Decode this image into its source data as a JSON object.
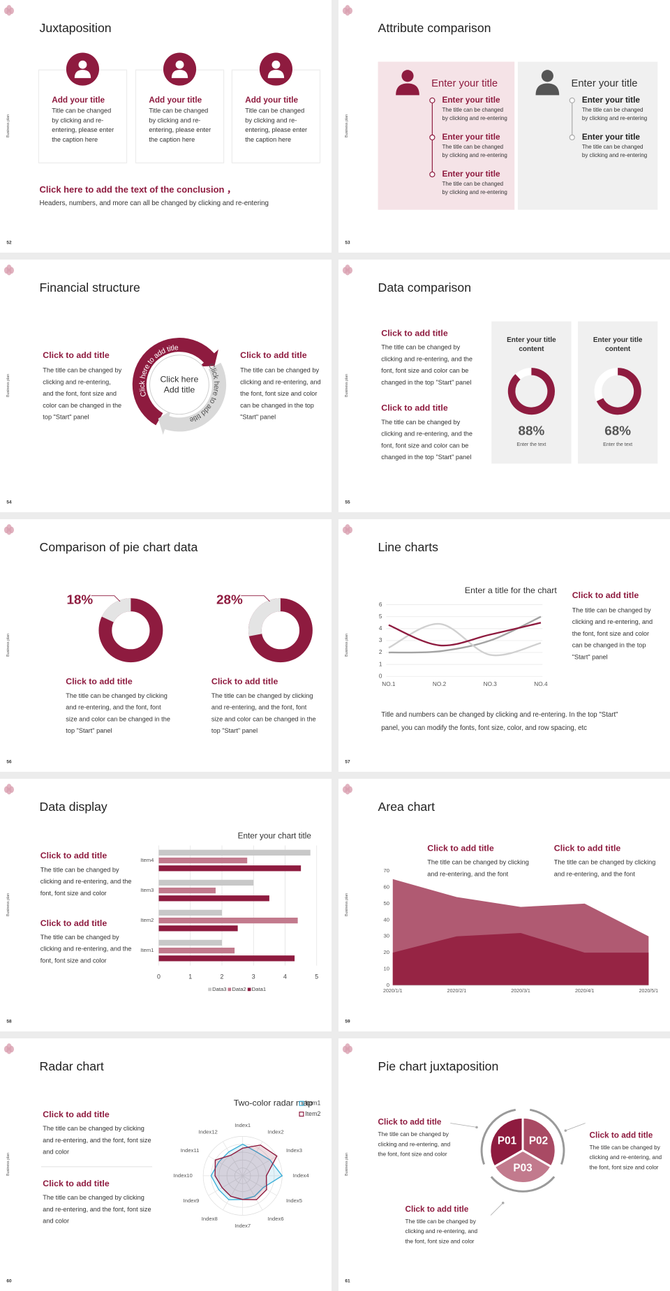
{
  "side_label": "Business plan",
  "slides": [
    {
      "number": 52,
      "title": "Juxtaposition",
      "cards": [
        {
          "heading": "Add your title",
          "lines": [
            "Title can be changed",
            "by clicking and re-",
            "entering, please enter",
            "the caption here"
          ]
        },
        {
          "heading": "Add your title",
          "lines": [
            "Title can be changed",
            "by clicking and re-",
            "entering, please enter",
            "the caption here"
          ]
        },
        {
          "heading": "Add your title",
          "lines": [
            "Title can be changed",
            "by clicking and re-",
            "entering, please enter",
            "the caption here"
          ]
        }
      ],
      "conclusion": {
        "heading": "Click here to add the text of the conclusion ，",
        "text": "Headers, numbers, and more can all be changed by clicking and re-entering"
      }
    },
    {
      "number": 53,
      "title": "Attribute comparison",
      "panels": [
        {
          "heading": "Enter your title",
          "items": [
            {
              "heading": "Enter your title",
              "lines": [
                "The title can be changed",
                "by clicking and re-entering"
              ]
            },
            {
              "heading": "Enter your title",
              "lines": [
                "The title can be changed",
                "by clicking and re-entering"
              ]
            },
            {
              "heading": "Enter your title",
              "lines": [
                "The title can be changed",
                "by clicking and re-entering"
              ]
            }
          ]
        },
        {
          "heading": "Enter your title",
          "items": [
            {
              "heading": "Enter your title",
              "lines": [
                "The title can be changed",
                "by clicking and re-entering"
              ]
            },
            {
              "heading": "Enter your title",
              "lines": [
                "The title can be changed",
                "by clicking and re-entering"
              ]
            }
          ]
        }
      ]
    },
    {
      "number": 54,
      "title": "Financial structure",
      "blocks": [
        {
          "heading": "Click to add title",
          "lines": [
            "The title can be changed by",
            "clicking and re-entering,",
            "and the font, font size and",
            "color can be changed in the",
            "top \"Start\" panel"
          ]
        },
        {
          "heading": "Click to add title",
          "lines": [
            "The title can be changed by",
            "clicking and re-entering, and",
            "the font, font size and color",
            "can be changed in the top",
            "\"Start\" panel"
          ]
        }
      ],
      "center": [
        "Click here",
        "Add title"
      ],
      "arc_labels": [
        "Click here to add title",
        "Click here to add title"
      ]
    },
    {
      "number": 55,
      "title": "Data comparison",
      "blocks": [
        {
          "heading": "Click to add title",
          "lines": [
            "The title can be changed by",
            "clicking and re-entering, and the",
            "font, font size and color can be",
            "changed in the top \"Start\" panel"
          ]
        },
        {
          "heading": "Click to add title",
          "lines": [
            "The title can be changed by",
            "clicking and re-entering, and the",
            "font, font size and color can be",
            "changed in the top \"Start\" panel"
          ]
        }
      ],
      "charts": [
        {
          "type": "donut",
          "title": [
            "Enter your title",
            "content"
          ],
          "values": [
            88
          ],
          "value_labels": [
            "88%"
          ],
          "caption": "Enter the text",
          "color": "#8e1b3f",
          "track_color": "#ffffff",
          "clockwise": true
        },
        {
          "type": "donut",
          "title": [
            "Enter your title",
            "content"
          ],
          "values": [
            68
          ],
          "value_labels": [
            "68%"
          ],
          "caption": "Enter the text",
          "color": "#8e1b3f",
          "track_color": "#ffffff",
          "clockwise": true
        }
      ]
    },
    {
      "number": 56,
      "title": "Comparison of pie chart data",
      "charts": [
        {
          "type": "donut",
          "values": [
            18
          ],
          "value_labels": [
            "18%"
          ],
          "color": "#e4e4e4",
          "track_color": "#8e1b3f",
          "clockwise": false
        },
        {
          "type": "donut",
          "values": [
            28
          ],
          "value_labels": [
            "28%"
          ],
          "color": "#e4e4e4",
          "track_color": "#8e1b3f",
          "clockwise": false
        }
      ],
      "blocks": [
        {
          "heading": "Click to add title",
          "lines": [
            "The title can be changed by clicking",
            "and re-entering, and the font, font",
            "size and color can be changed in the",
            "top \"Start\" panel"
          ]
        },
        {
          "heading": "Click to add title",
          "lines": [
            "The title can be changed by clicking",
            "and re-entering, and the font, font",
            "size and color can be changed in the",
            "top \"Start\" panel"
          ]
        }
      ]
    },
    {
      "number": 57,
      "title": "Line charts",
      "chart": {
        "type": "line",
        "title": "Enter a title for the chart",
        "categories": [
          "NO.1",
          "NO.2",
          "NO.3",
          "NO.4"
        ],
        "series": [
          {
            "color": "#a3a3a3",
            "values": [
              2,
              2.1,
              3,
              5
            ]
          },
          {
            "color": "#d0d0d0",
            "values": [
              2.4,
              4.4,
              1.8,
              2.8
            ]
          },
          {
            "color": "#8e1b3f",
            "values": [
              4.3,
              2.6,
              3.5,
              4.5
            ]
          }
        ],
        "ylim": [
          0,
          6
        ],
        "yticks": [
          0,
          1,
          2,
          3,
          4,
          5,
          6
        ],
        "grid": true,
        "smooth": true
      },
      "block": {
        "heading": "Click to add title",
        "lines": [
          "The title can be changed by",
          "clicking and re-entering, and",
          "the font, font size and color",
          "can be changed in the top",
          "\"Start\" panel"
        ]
      },
      "note": [
        "Title and numbers can be changed by clicking and re-entering. In the top \"Start\"",
        "panel, you can modify the fonts, font size, color, and row spacing, etc"
      ]
    },
    {
      "number": 58,
      "title": "Data display",
      "blocks": [
        {
          "heading": "Click to add title",
          "lines": [
            "The title can be changed by",
            "clicking and re-entering, and the",
            "font, font size and color"
          ]
        },
        {
          "heading": "Click to add title",
          "lines": [
            "The title can be changed by",
            "clicking and re-entering, and the",
            "font, font size and color"
          ]
        }
      ],
      "chart": {
        "type": "bar",
        "orientation": "horizontal",
        "title": "Enter your chart title",
        "categories": [
          "Item1",
          "Item2",
          "Item3",
          "Item4"
        ],
        "series": [
          {
            "name": "Data3",
            "color": "#c8c8c8",
            "values": [
              2,
              2,
              3,
              4.8
            ]
          },
          {
            "name": "Data2",
            "color": "#c27a8d",
            "values": [
              2.4,
              4.4,
              1.8,
              2.8
            ]
          },
          {
            "name": "Data1",
            "color": "#8e1b3f",
            "values": [
              4.3,
              2.5,
              3.5,
              4.5
            ]
          }
        ],
        "xlim": [
          0,
          5
        ],
        "xticks": [
          0,
          1,
          2,
          3,
          4,
          5
        ],
        "grid": true,
        "legend": "bottom"
      }
    },
    {
      "number": 59,
      "title": "Area chart",
      "blocks": [
        {
          "heading": "Click to add title",
          "lines": [
            "The title can be changed by clicking",
            "and re-entering, and the font"
          ]
        },
        {
          "heading": "Click to add title",
          "lines": [
            "The title can be changed by clicking",
            "and re-entering, and the font"
          ]
        }
      ],
      "chart": {
        "type": "area",
        "x": [
          "2020/1/1",
          "2020/2/1",
          "2020/3/1",
          "2020/4/1",
          "2020/5/1"
        ],
        "series": [
          {
            "color": "#b05a72",
            "values": [
              65,
              54,
              48,
              50,
              30
            ]
          },
          {
            "color": "#962444",
            "values": [
              20,
              30,
              32,
              20,
              20
            ]
          }
        ],
        "ylim": [
          0,
          70
        ],
        "yticks": [
          0,
          10,
          20,
          30,
          40,
          50,
          60,
          70
        ]
      }
    },
    {
      "number": 60,
      "title": "Radar chart",
      "blocks": [
        {
          "heading": "Click to add title",
          "lines": [
            "The title can be changed by clicking",
            "and re-entering, and the font, font size",
            "and color"
          ]
        },
        {
          "heading": "Click to add title",
          "lines": [
            "The title can be changed by clicking",
            "and re-entering, and the font, font size",
            "and color"
          ]
        }
      ],
      "chart": {
        "type": "radar",
        "title": "Two-color radar map",
        "categories": [
          "Index1",
          "Index2",
          "Index3",
          "Index4",
          "Index5",
          "Index6",
          "Index7",
          "Index8",
          "Index9",
          "Index10",
          "Index11",
          "Index12"
        ],
        "series": [
          {
            "name": "Item1",
            "color": "#3fb0d8",
            "values": [
              4,
              3.5,
              4,
              5,
              3,
              3,
              3,
              3.5,
              3.5,
              4,
              3.5,
              3.5
            ]
          },
          {
            "name": "Item2",
            "color": "#8e1b3f",
            "values": [
              3.5,
              4.5,
              5,
              3,
              3.5,
              3.5,
              3,
              3,
              3,
              3.5,
              4,
              3
            ]
          }
        ],
        "rlim": [
          0,
          5
        ],
        "rticks": [
          1,
          2,
          3,
          4,
          5
        ],
        "legend": "top-right"
      }
    },
    {
      "number": 61,
      "title": "Pie chart juxtaposition",
      "sectors": [
        "P01",
        "P02",
        "P03"
      ],
      "blocks": [
        {
          "heading": "Click to add title",
          "lines": [
            "The title can be changed by",
            "clicking and re-entering, and",
            "the font, font size and color"
          ]
        },
        {
          "heading": "Click to add title",
          "lines": [
            "The title can be changed by",
            "clicking and re-entering, and",
            "the font, font size and color"
          ]
        },
        {
          "heading": "Click to add title",
          "lines": [
            "The title can be changed by",
            "clicking and re-entering, and",
            "the font, font size and color"
          ]
        }
      ]
    }
  ]
}
